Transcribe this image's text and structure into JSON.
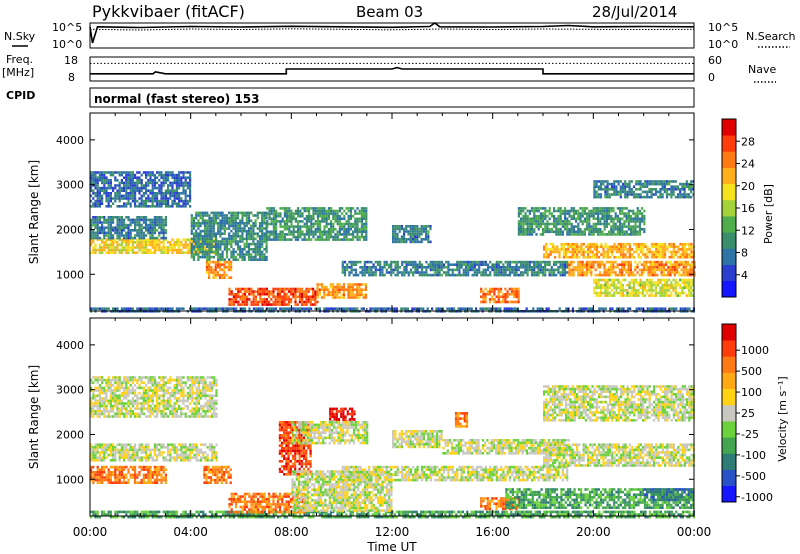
{
  "header": {
    "title": "Pykkvibaer (fitACF)",
    "beam": "Beam 03",
    "date": "28/Jul/2014"
  },
  "status": {
    "nsky_label": "N.Sky",
    "nsearch_label": "N.Search",
    "noise_ticks": [
      "10^5",
      "10^0"
    ],
    "freq_label_1": "Freq.",
    "freq_label_2": "[MHz]",
    "freq_ticks": [
      "18",
      "8"
    ],
    "nave_label": "Nave",
    "nave_ticks": [
      "60",
      "0"
    ],
    "cpid_label": "CPID",
    "cpid_text": "normal (fast stereo) 153"
  },
  "chart_data": [
    {
      "type": "line",
      "panel": "noise",
      "x_unit": "hours UT",
      "xlim": [
        0,
        24
      ],
      "series": [
        {
          "points": [
            [
              0,
              0.85
            ],
            [
              0.1,
              0.2
            ],
            [
              0.3,
              0.85
            ],
            [
              2,
              0.82
            ],
            [
              4,
              0.86
            ],
            [
              6,
              0.84
            ],
            [
              8,
              0.87
            ],
            [
              10,
              0.85
            ],
            [
              12,
              0.83
            ],
            [
              13.5,
              0.86
            ],
            [
              13.7,
              1.0
            ],
            [
              13.9,
              0.85
            ],
            [
              16,
              0.84
            ],
            [
              18,
              0.86
            ],
            [
              19,
              0.9
            ],
            [
              20,
              0.85
            ],
            [
              22,
              0.86
            ],
            [
              24,
              0.85
            ]
          ]
        },
        {
          "points": [
            [
              0,
              0.75
            ],
            [
              2,
              0.72
            ],
            [
              4,
              0.76
            ],
            [
              6,
              0.74
            ],
            [
              8,
              0.77
            ],
            [
              10,
              0.75
            ],
            [
              12,
              0.73
            ],
            [
              14,
              0.76
            ],
            [
              16,
              0.74
            ],
            [
              18,
              0.76
            ],
            [
              20,
              0.75
            ],
            [
              22,
              0.74
            ],
            [
              24,
              0.75
            ]
          ]
        }
      ]
    },
    {
      "type": "line",
      "panel": "frequency-nave",
      "x_unit": "hours UT",
      "xlim": [
        0,
        24
      ],
      "ylim_freq": [
        8,
        18
      ],
      "ylim_nave": [
        0,
        60
      ],
      "series": [
        {
          "values_desc": "freq",
          "points": [
            [
              0,
              11.0
            ],
            [
              2.5,
              11.0
            ],
            [
              2.6,
              11.8
            ],
            [
              3.0,
              11.0
            ],
            [
              7.8,
              11.0
            ],
            [
              7.8,
              13.0
            ],
            [
              12,
              13.0
            ],
            [
              12.2,
              13.6
            ],
            [
              12.4,
              13.0
            ],
            [
              18,
              13.0
            ],
            [
              18,
              11.0
            ],
            [
              24,
              11.0
            ]
          ]
        },
        {
          "values_desc": "nave",
          "points": [
            [
              0,
              44
            ],
            [
              24,
              44
            ]
          ]
        }
      ]
    },
    {
      "type": "heatmap",
      "panel": "power",
      "xlabel": "",
      "ylabel": "Slant Range [km]",
      "xlim": [
        0,
        24
      ],
      "ylim": [
        180,
        4600
      ],
      "y_ticks": [
        1000,
        2000,
        3000,
        4000
      ],
      "colorbar": {
        "label": "Power [dB]",
        "ticks": [
          4,
          8,
          12,
          16,
          20,
          24,
          28
        ],
        "range": [
          0,
          32
        ],
        "colors": [
          "#1515ff",
          "#2a3ecf",
          "#2d73a6",
          "#3a8f6a",
          "#4fae4b",
          "#a4d23b",
          "#f6e11e",
          "#ffaf1a",
          "#ff7a12",
          "#ff3d0b",
          "#e10000"
        ]
      },
      "regions": [
        {
          "x0": 0,
          "x1": 24,
          "y0": 180,
          "y1": 260,
          "v": 6
        },
        {
          "x0": 0,
          "x1": 4,
          "y0": 2500,
          "y1": 3300,
          "v": 6
        },
        {
          "x0": 0,
          "x1": 5,
          "y0": 1500,
          "y1": 1800,
          "v": 20
        },
        {
          "x0": 0,
          "x1": 3,
          "y0": 1800,
          "y1": 2300,
          "v": 8
        },
        {
          "x0": 4,
          "x1": 7,
          "y0": 1300,
          "y1": 2400,
          "v": 9
        },
        {
          "x0": 4.6,
          "x1": 5.6,
          "y0": 900,
          "y1": 1300,
          "v": 24
        },
        {
          "x0": 5.5,
          "x1": 9,
          "y0": 300,
          "y1": 700,
          "v": 28
        },
        {
          "x0": 7,
          "x1": 11,
          "y0": 1800,
          "y1": 2500,
          "v": 10
        },
        {
          "x0": 9,
          "x1": 11,
          "y0": 500,
          "y1": 800,
          "v": 24
        },
        {
          "x0": 10,
          "x1": 19,
          "y0": 1000,
          "y1": 1300,
          "v": 8
        },
        {
          "x0": 12,
          "x1": 13.5,
          "y0": 1700,
          "y1": 2100,
          "v": 8
        },
        {
          "x0": 15.5,
          "x1": 17,
          "y0": 400,
          "y1": 700,
          "v": 26
        },
        {
          "x0": 17,
          "x1": 22,
          "y0": 1900,
          "y1": 2500,
          "v": 10
        },
        {
          "x0": 18,
          "x1": 24,
          "y0": 1400,
          "y1": 1700,
          "v": 22
        },
        {
          "x0": 19,
          "x1": 24,
          "y0": 1000,
          "y1": 1300,
          "v": 24
        },
        {
          "x0": 20,
          "x1": 24,
          "y0": 500,
          "y1": 900,
          "v": 18
        },
        {
          "x0": 20,
          "x1": 24,
          "y0": 2700,
          "y1": 3100,
          "v": 8
        }
      ]
    },
    {
      "type": "heatmap",
      "panel": "velocity",
      "xlabel": "Time UT",
      "ylabel": "Slant Range [km]",
      "xlim": [
        0,
        24
      ],
      "ylim": [
        180,
        4600
      ],
      "x_ticks": [
        "00:00",
        "04:00",
        "08:00",
        "12:00",
        "16:00",
        "20:00",
        "00:00"
      ],
      "y_ticks": [
        1000,
        2000,
        3000,
        4000
      ],
      "colorbar": {
        "label": "Velocity [m s⁻¹]",
        "ticks": [
          1000,
          500,
          100,
          25,
          -25,
          -100,
          -500,
          -1000
        ],
        "colors": [
          "#1515ff",
          "#2a52c8",
          "#2f7c77",
          "#43a54f",
          "#6bd23b",
          "#c8c8c0",
          "#ffd214",
          "#ffa914",
          "#ff7a12",
          "#ff3d0b",
          "#e10000"
        ]
      },
      "regions": [
        {
          "x0": 0,
          "x1": 24,
          "y0": 180,
          "y1": 300,
          "v": 3
        },
        {
          "x0": 0,
          "x1": 5,
          "y0": 2400,
          "y1": 3300,
          "v": 5
        },
        {
          "x0": 0,
          "x1": 5,
          "y0": 1400,
          "y1": 1800,
          "v": 5
        },
        {
          "x0": 0,
          "x1": 3,
          "y0": 900,
          "y1": 1300,
          "v": 8
        },
        {
          "x0": 4.5,
          "x1": 5.6,
          "y0": 900,
          "y1": 1300,
          "v": 8
        },
        {
          "x0": 5.5,
          "x1": 8.5,
          "y0": 250,
          "y1": 700,
          "v": 8
        },
        {
          "x0": 7.5,
          "x1": 8.8,
          "y0": 1100,
          "y1": 2300,
          "v": 9
        },
        {
          "x0": 9.5,
          "x1": 10.5,
          "y0": 2300,
          "y1": 2600,
          "v": 10
        },
        {
          "x0": 8,
          "x1": 12,
          "y0": 300,
          "y1": 1200,
          "v": 5
        },
        {
          "x0": 10,
          "x1": 19,
          "y0": 1000,
          "y1": 1300,
          "v": 5
        },
        {
          "x0": 8,
          "x1": 11,
          "y0": 1800,
          "y1": 2300,
          "v": 5
        },
        {
          "x0": 12,
          "x1": 14,
          "y0": 1700,
          "y1": 2100,
          "v": 5
        },
        {
          "x0": 14,
          "x1": 19,
          "y0": 1600,
          "y1": 1900,
          "v": 5
        },
        {
          "x0": 15.5,
          "x1": 17,
          "y0": 350,
          "y1": 600,
          "v": 8
        },
        {
          "x0": 16.5,
          "x1": 24,
          "y0": 350,
          "y1": 800,
          "v": 3
        },
        {
          "x0": 18,
          "x1": 24,
          "y0": 1300,
          "y1": 1800,
          "v": 5
        },
        {
          "x0": 18,
          "x1": 24,
          "y0": 2300,
          "y1": 3100,
          "v": 5
        },
        {
          "x0": 14.5,
          "x1": 15,
          "y0": 2200,
          "y1": 2500,
          "v": 8
        },
        {
          "x0": 22,
          "x1": 24,
          "y0": 550,
          "y1": 800,
          "v": 2
        }
      ]
    }
  ]
}
